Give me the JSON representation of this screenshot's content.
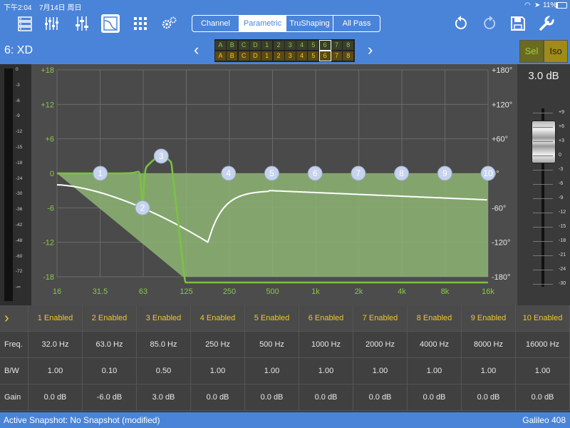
{
  "status": {
    "time": "下午2:04",
    "date": "7月14日 周日",
    "battery": "11%"
  },
  "toolbar": {
    "icons": [
      "mixer-icon",
      "faders-icon",
      "sliders-icon",
      "eq-icon",
      "grid-icon",
      "settings-gears-icon"
    ],
    "tabs": [
      {
        "label": "Channel",
        "active": false
      },
      {
        "label": "Parametric",
        "active": true
      },
      {
        "label": "TruShaping",
        "active": false
      },
      {
        "label": "All Pass",
        "active": false
      }
    ]
  },
  "header": {
    "channel": "6: XD",
    "prev": "‹",
    "next": "›",
    "top_labels": [
      "A",
      "B",
      "C",
      "D",
      "1",
      "2",
      "3",
      "4",
      "5",
      "6",
      "7",
      "8"
    ],
    "bottom_labels": [
      "A",
      "B",
      "C",
      "D",
      "1",
      "2",
      "3",
      "4",
      "5",
      "6",
      "7",
      "8"
    ],
    "selected_index": 9,
    "sel_label": "Sel",
    "iso_label": "Iso"
  },
  "meter": {
    "ticks": [
      "0",
      "-3",
      "-6",
      "-9",
      "-12",
      "-15",
      "-18",
      "-24",
      "-30",
      "-36",
      "-42",
      "-48",
      "-60",
      "-72",
      "-∞"
    ]
  },
  "graph": {
    "db_ticks": [
      "+18",
      "+12",
      "+6",
      "0",
      "-6",
      "-12",
      "-18"
    ],
    "phase_ticks": [
      "+180°",
      "+120°",
      "+60°",
      "0°",
      "-60°",
      "-120°",
      "-180°"
    ],
    "freq_ticks": [
      "16",
      "31.5",
      "63",
      "125",
      "250",
      "500",
      "1k",
      "2k",
      "4k",
      "8k",
      "16k"
    ],
    "bands": [
      {
        "label": "1",
        "freq": 32,
        "gain": 0
      },
      {
        "label": "2",
        "freq": 63,
        "gain": -6
      },
      {
        "label": "3",
        "freq": 85,
        "gain": 3
      },
      {
        "label": "4",
        "freq": 250,
        "gain": 0
      },
      {
        "label": "5",
        "freq": 500,
        "gain": 0
      },
      {
        "label": "6",
        "freq": 1000,
        "gain": 0
      },
      {
        "label": "7",
        "freq": 2000,
        "gain": 0
      },
      {
        "label": "8",
        "freq": 4000,
        "gain": 0
      },
      {
        "label": "9",
        "freq": 8000,
        "gain": 0
      },
      {
        "label": "10",
        "freq": 16000,
        "gain": 0
      }
    ],
    "colors": {
      "fill": "#8db573",
      "response": "#7cc242",
      "phase": "#ffffff",
      "band_handle": "#c6d3ec"
    }
  },
  "output": {
    "gain": "3.0 dB",
    "fader_ticks": [
      "+9",
      "+6",
      "+3",
      "0",
      "-3",
      "-6",
      "-9",
      "-12",
      "-15",
      "-18",
      "-21",
      "-24",
      "-30"
    ],
    "fader_level_db": 3
  },
  "table": {
    "headers": [
      "1 Enabled",
      "2 Enabled",
      "3 Enabled",
      "4 Enabled",
      "5 Enabled",
      "6 Enabled",
      "7 Enabled",
      "8 Enabled",
      "9 Enabled",
      "10 Enabled"
    ],
    "rows": [
      {
        "label": "Freq.",
        "values": [
          "32.0 Hz",
          "63.0 Hz",
          "85.0 Hz",
          "250 Hz",
          "500 Hz",
          "1000 Hz",
          "2000 Hz",
          "4000 Hz",
          "8000 Hz",
          "16000 Hz"
        ]
      },
      {
        "label": "B/W",
        "values": [
          "1.00",
          "0.10",
          "0.50",
          "1.00",
          "1.00",
          "1.00",
          "1.00",
          "1.00",
          "1.00",
          "1.00"
        ]
      },
      {
        "label": "Gain",
        "values": [
          "0.0 dB",
          "-6.0 dB",
          "3.0 dB",
          "0.0 dB",
          "0.0 dB",
          "0.0 dB",
          "0.0 dB",
          "0.0 dB",
          "0.0 dB",
          "0.0 dB"
        ]
      }
    ]
  },
  "footer": {
    "snapshot": "Active Snapshot: No Snapshot (modified)",
    "device": "Galileo 408"
  }
}
